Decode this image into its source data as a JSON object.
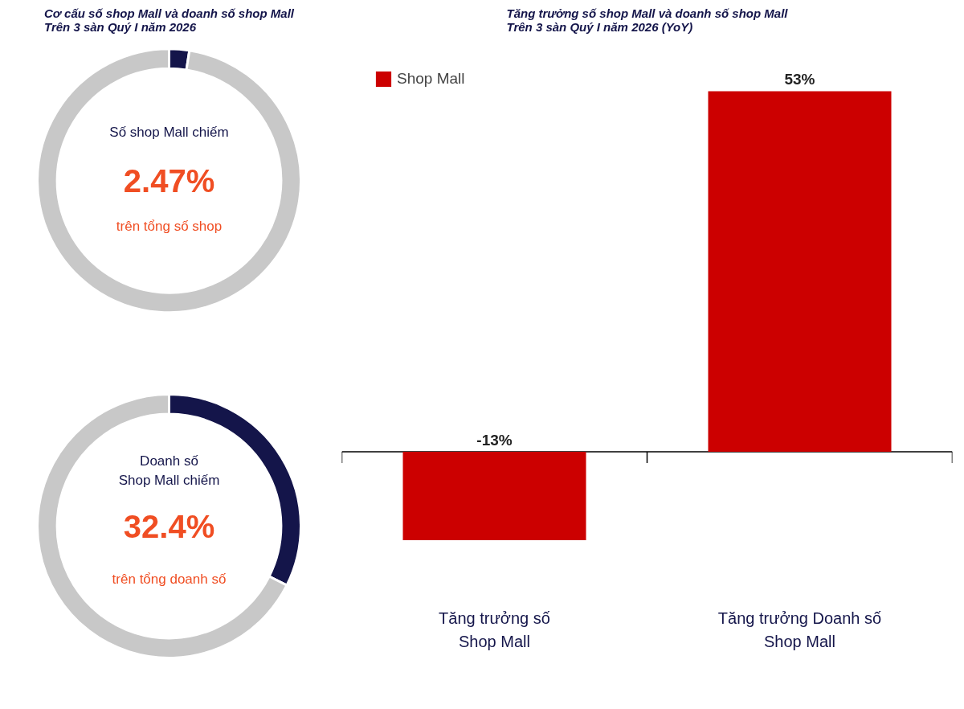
{
  "chart_data": [
    {
      "type": "donut",
      "title": "Cơ cấu số shop Mall và doanh số shop Mall\nTrên 3 sàn Quý I năm 2026",
      "categories": [
        null,
        null
      ],
      "values": [
        2.47,
        97.53
      ],
      "colors": [
        "#14154a",
        "#c8c8c8"
      ],
      "annotations": [
        "Số shop Mall chiếm",
        "2.47%",
        "trên tổng số shop"
      ]
    },
    {
      "type": "donut",
      "categories": [
        null,
        null
      ],
      "values": [
        32.4,
        67.6
      ],
      "colors": [
        "#14154a",
        "#c8c8c8"
      ],
      "annotations": [
        "Doanh số\nShop Mall chiếm",
        "32.4%",
        "trên tổng doanh số"
      ]
    },
    {
      "type": "bar",
      "title": "Tăng trưởng số shop Mall và doanh số shop Mall\nTrên 3 sàn Quý I năm 2026 (YoY)",
      "categories": [
        "Tăng trưởng số\nShop Mall",
        "Tăng trưởng Doanh số\nShop Mall"
      ],
      "series": [
        {
          "name": "Shop Mall",
          "color": "#cc0000",
          "values": [
            -13,
            53
          ],
          "value_labels": [
            "-13%",
            "53%"
          ]
        }
      ],
      "legend": "top left"
    }
  ]
}
